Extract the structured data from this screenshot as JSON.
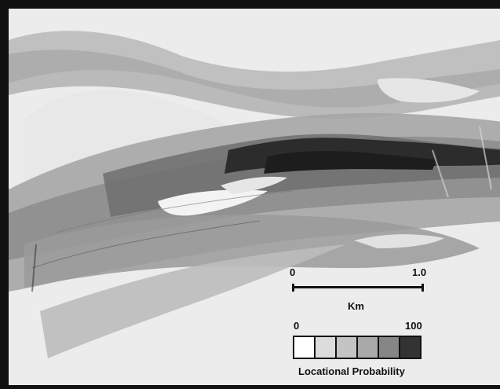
{
  "scale_bar": {
    "start_label": "0",
    "end_label": "1.0",
    "unit_label": "Km"
  },
  "legend": {
    "min_label": "0",
    "max_label": "100",
    "title": "Locational Probability",
    "class_colors": [
      "#ffffff",
      "#dcdcdc",
      "#c4c4c4",
      "#a9a9a9",
      "#868686",
      "#333333"
    ]
  },
  "colors": {
    "background": "#ececec",
    "frame": "#111111"
  }
}
